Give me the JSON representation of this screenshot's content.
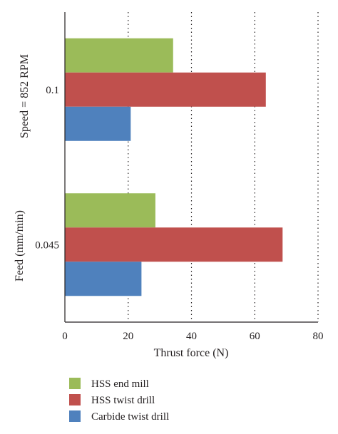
{
  "chart_data": {
    "type": "bar",
    "orientation": "horizontal",
    "categories": [
      "0.1",
      "0.045"
    ],
    "series": [
      {
        "name": "HSS end mill",
        "color": "#9bbb59",
        "values": [
          34.2,
          28.6
        ]
      },
      {
        "name": "HSS twist drill",
        "color": "#c0504d",
        "values": [
          63.5,
          68.8
        ]
      },
      {
        "name": "Carbide twist drill",
        "color": "#4f81bd",
        "values": [
          20.8,
          24.2
        ]
      }
    ],
    "xlabel": "Thrust force (N)",
    "ylabel": "Feed (mm/min)",
    "ylabel_secondary": "Speed = 852 RPM",
    "xlim": [
      0,
      80
    ],
    "xticks": [
      "0",
      "20",
      "40",
      "60",
      "80"
    ],
    "grid": "vertical dotted",
    "legend_position": "bottom-left"
  }
}
